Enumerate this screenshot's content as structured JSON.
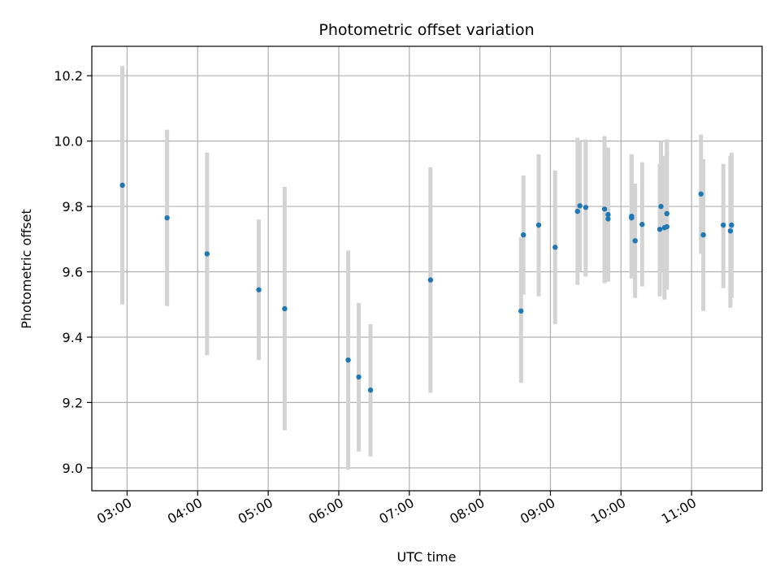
{
  "chart_data": {
    "type": "scatter",
    "title": "Photometric offset variation",
    "xlabel": "UTC time",
    "ylabel": "Photometric offset",
    "x_unit": "UTC time (HH:MM)",
    "xlim": [
      "02:30",
      "12:00"
    ],
    "ylim": [
      8.93,
      10.29
    ],
    "grid": true,
    "x_ticks": [
      "03:00",
      "04:00",
      "05:00",
      "06:00",
      "07:00",
      "08:00",
      "09:00",
      "10:00",
      "11:00"
    ],
    "y_ticks": [
      "9.0",
      "9.2",
      "9.4",
      "9.6",
      "9.8",
      "10.0",
      "10.2"
    ],
    "point_color": "#1f77b4",
    "errorbar_color": "#d3d3d3",
    "points": [
      {
        "x": "02:56",
        "y": 9.865,
        "lo": 9.5,
        "hi": 10.23
      },
      {
        "x": "03:34",
        "y": 9.765,
        "lo": 9.495,
        "hi": 10.035
      },
      {
        "x": "04:08",
        "y": 9.655,
        "lo": 9.345,
        "hi": 9.965
      },
      {
        "x": "04:52",
        "y": 9.545,
        "lo": 9.33,
        "hi": 9.76
      },
      {
        "x": "05:14",
        "y": 9.487,
        "lo": 9.115,
        "hi": 9.86
      },
      {
        "x": "06:08",
        "y": 9.33,
        "lo": 8.995,
        "hi": 9.665
      },
      {
        "x": "06:17",
        "y": 9.278,
        "lo": 9.05,
        "hi": 9.505
      },
      {
        "x": "06:27",
        "y": 9.238,
        "lo": 9.035,
        "hi": 9.44
      },
      {
        "x": "07:18",
        "y": 9.575,
        "lo": 9.23,
        "hi": 9.92
      },
      {
        "x": "08:35",
        "y": 9.48,
        "lo": 9.26,
        "hi": 9.705
      },
      {
        "x": "08:37",
        "y": 9.713,
        "lo": 9.53,
        "hi": 9.895
      },
      {
        "x": "08:50",
        "y": 9.743,
        "lo": 9.525,
        "hi": 9.96
      },
      {
        "x": "09:04",
        "y": 9.675,
        "lo": 9.44,
        "hi": 9.91
      },
      {
        "x": "09:23",
        "y": 9.785,
        "lo": 9.56,
        "hi": 10.01
      },
      {
        "x": "09:25",
        "y": 9.802,
        "lo": 9.6,
        "hi": 10.0
      },
      {
        "x": "09:30",
        "y": 9.797,
        "lo": 9.585,
        "hi": 10.005
      },
      {
        "x": "09:46",
        "y": 9.792,
        "lo": 9.565,
        "hi": 10.015
      },
      {
        "x": "09:49",
        "y": 9.775,
        "lo": 9.57,
        "hi": 9.98
      },
      {
        "x": "09:49",
        "y": 9.762,
        "lo": 9.57,
        "hi": 9.955
      },
      {
        "x": "10:09",
        "y": 9.765,
        "lo": 9.58,
        "hi": 9.955
      },
      {
        "x": "10:09",
        "y": 9.77,
        "lo": 9.58,
        "hi": 9.96
      },
      {
        "x": "10:12",
        "y": 9.695,
        "lo": 9.52,
        "hi": 9.87
      },
      {
        "x": "10:18",
        "y": 9.745,
        "lo": 9.555,
        "hi": 9.935
      },
      {
        "x": "10:33",
        "y": 9.73,
        "lo": 9.525,
        "hi": 9.93
      },
      {
        "x": "10:34",
        "y": 9.8,
        "lo": 9.6,
        "hi": 10.0
      },
      {
        "x": "10:37",
        "y": 9.735,
        "lo": 9.515,
        "hi": 9.955
      },
      {
        "x": "10:39",
        "y": 9.738,
        "lo": 9.545,
        "hi": 10.005
      },
      {
        "x": "10:39",
        "y": 9.778,
        "lo": 9.55,
        "hi": 10.0
      },
      {
        "x": "11:08",
        "y": 9.838,
        "lo": 9.655,
        "hi": 10.02
      },
      {
        "x": "11:10",
        "y": 9.713,
        "lo": 9.48,
        "hi": 9.945
      },
      {
        "x": "11:27",
        "y": 9.743,
        "lo": 9.55,
        "hi": 9.93
      },
      {
        "x": "11:33",
        "y": 9.725,
        "lo": 9.49,
        "hi": 9.955
      },
      {
        "x": "11:34",
        "y": 9.743,
        "lo": 9.52,
        "hi": 9.965
      }
    ]
  }
}
